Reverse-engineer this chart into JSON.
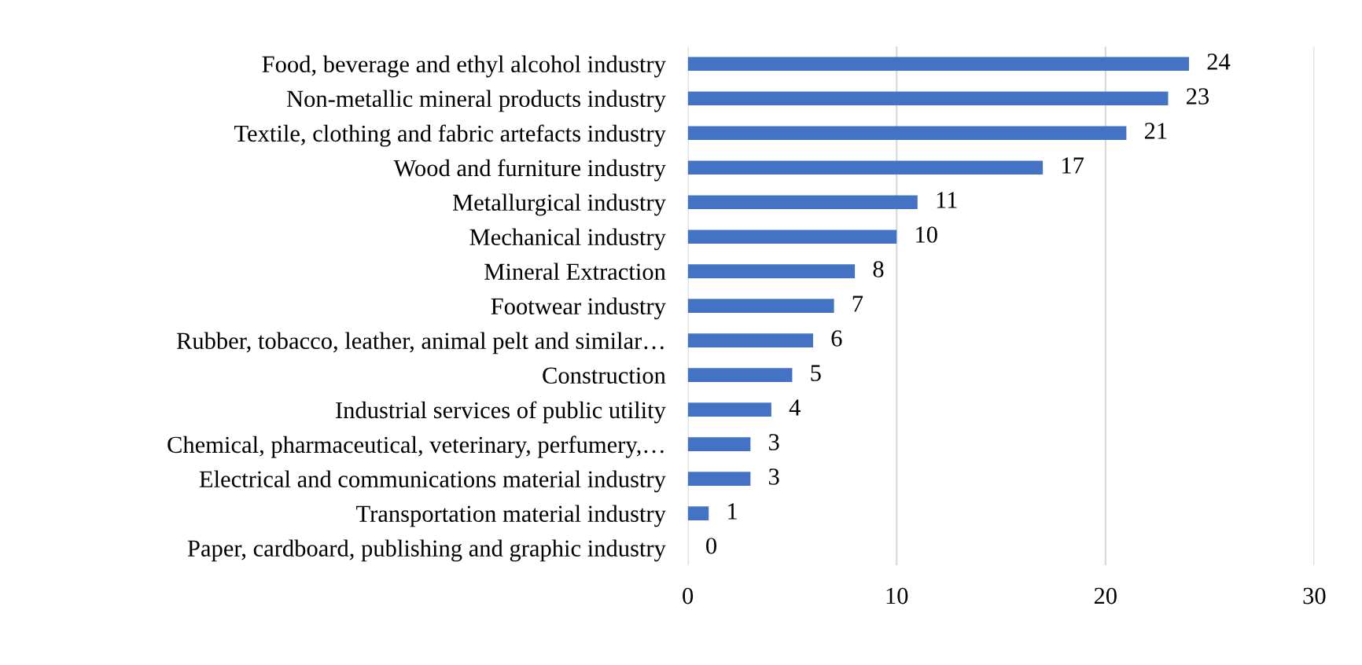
{
  "chart_data": {
    "type": "bar",
    "orientation": "horizontal",
    "categories": [
      "Food, beverage and ethyl alcohol industry",
      "Non-metallic mineral products industry",
      "Textile, clothing and fabric artefacts industry",
      "Wood and furniture industry",
      "Metallurgical industry",
      "Mechanical industry",
      "Mineral Extraction",
      "Footwear industry",
      "Rubber, tobacco, leather, animal pelt and similar…",
      "Construction",
      "Industrial services of public utility",
      "Chemical, pharmaceutical, veterinary, perfumery,…",
      "Electrical and communications material industry",
      "Transportation material industry",
      "Paper, cardboard, publishing and graphic industry"
    ],
    "values": [
      24,
      23,
      21,
      17,
      11,
      10,
      8,
      7,
      6,
      5,
      4,
      3,
      3,
      1,
      0
    ],
    "color": "#4472c4",
    "xlim": [
      0,
      30
    ],
    "xticks": [
      0,
      10,
      20,
      30
    ],
    "grid": "x",
    "data_labels": true
  }
}
